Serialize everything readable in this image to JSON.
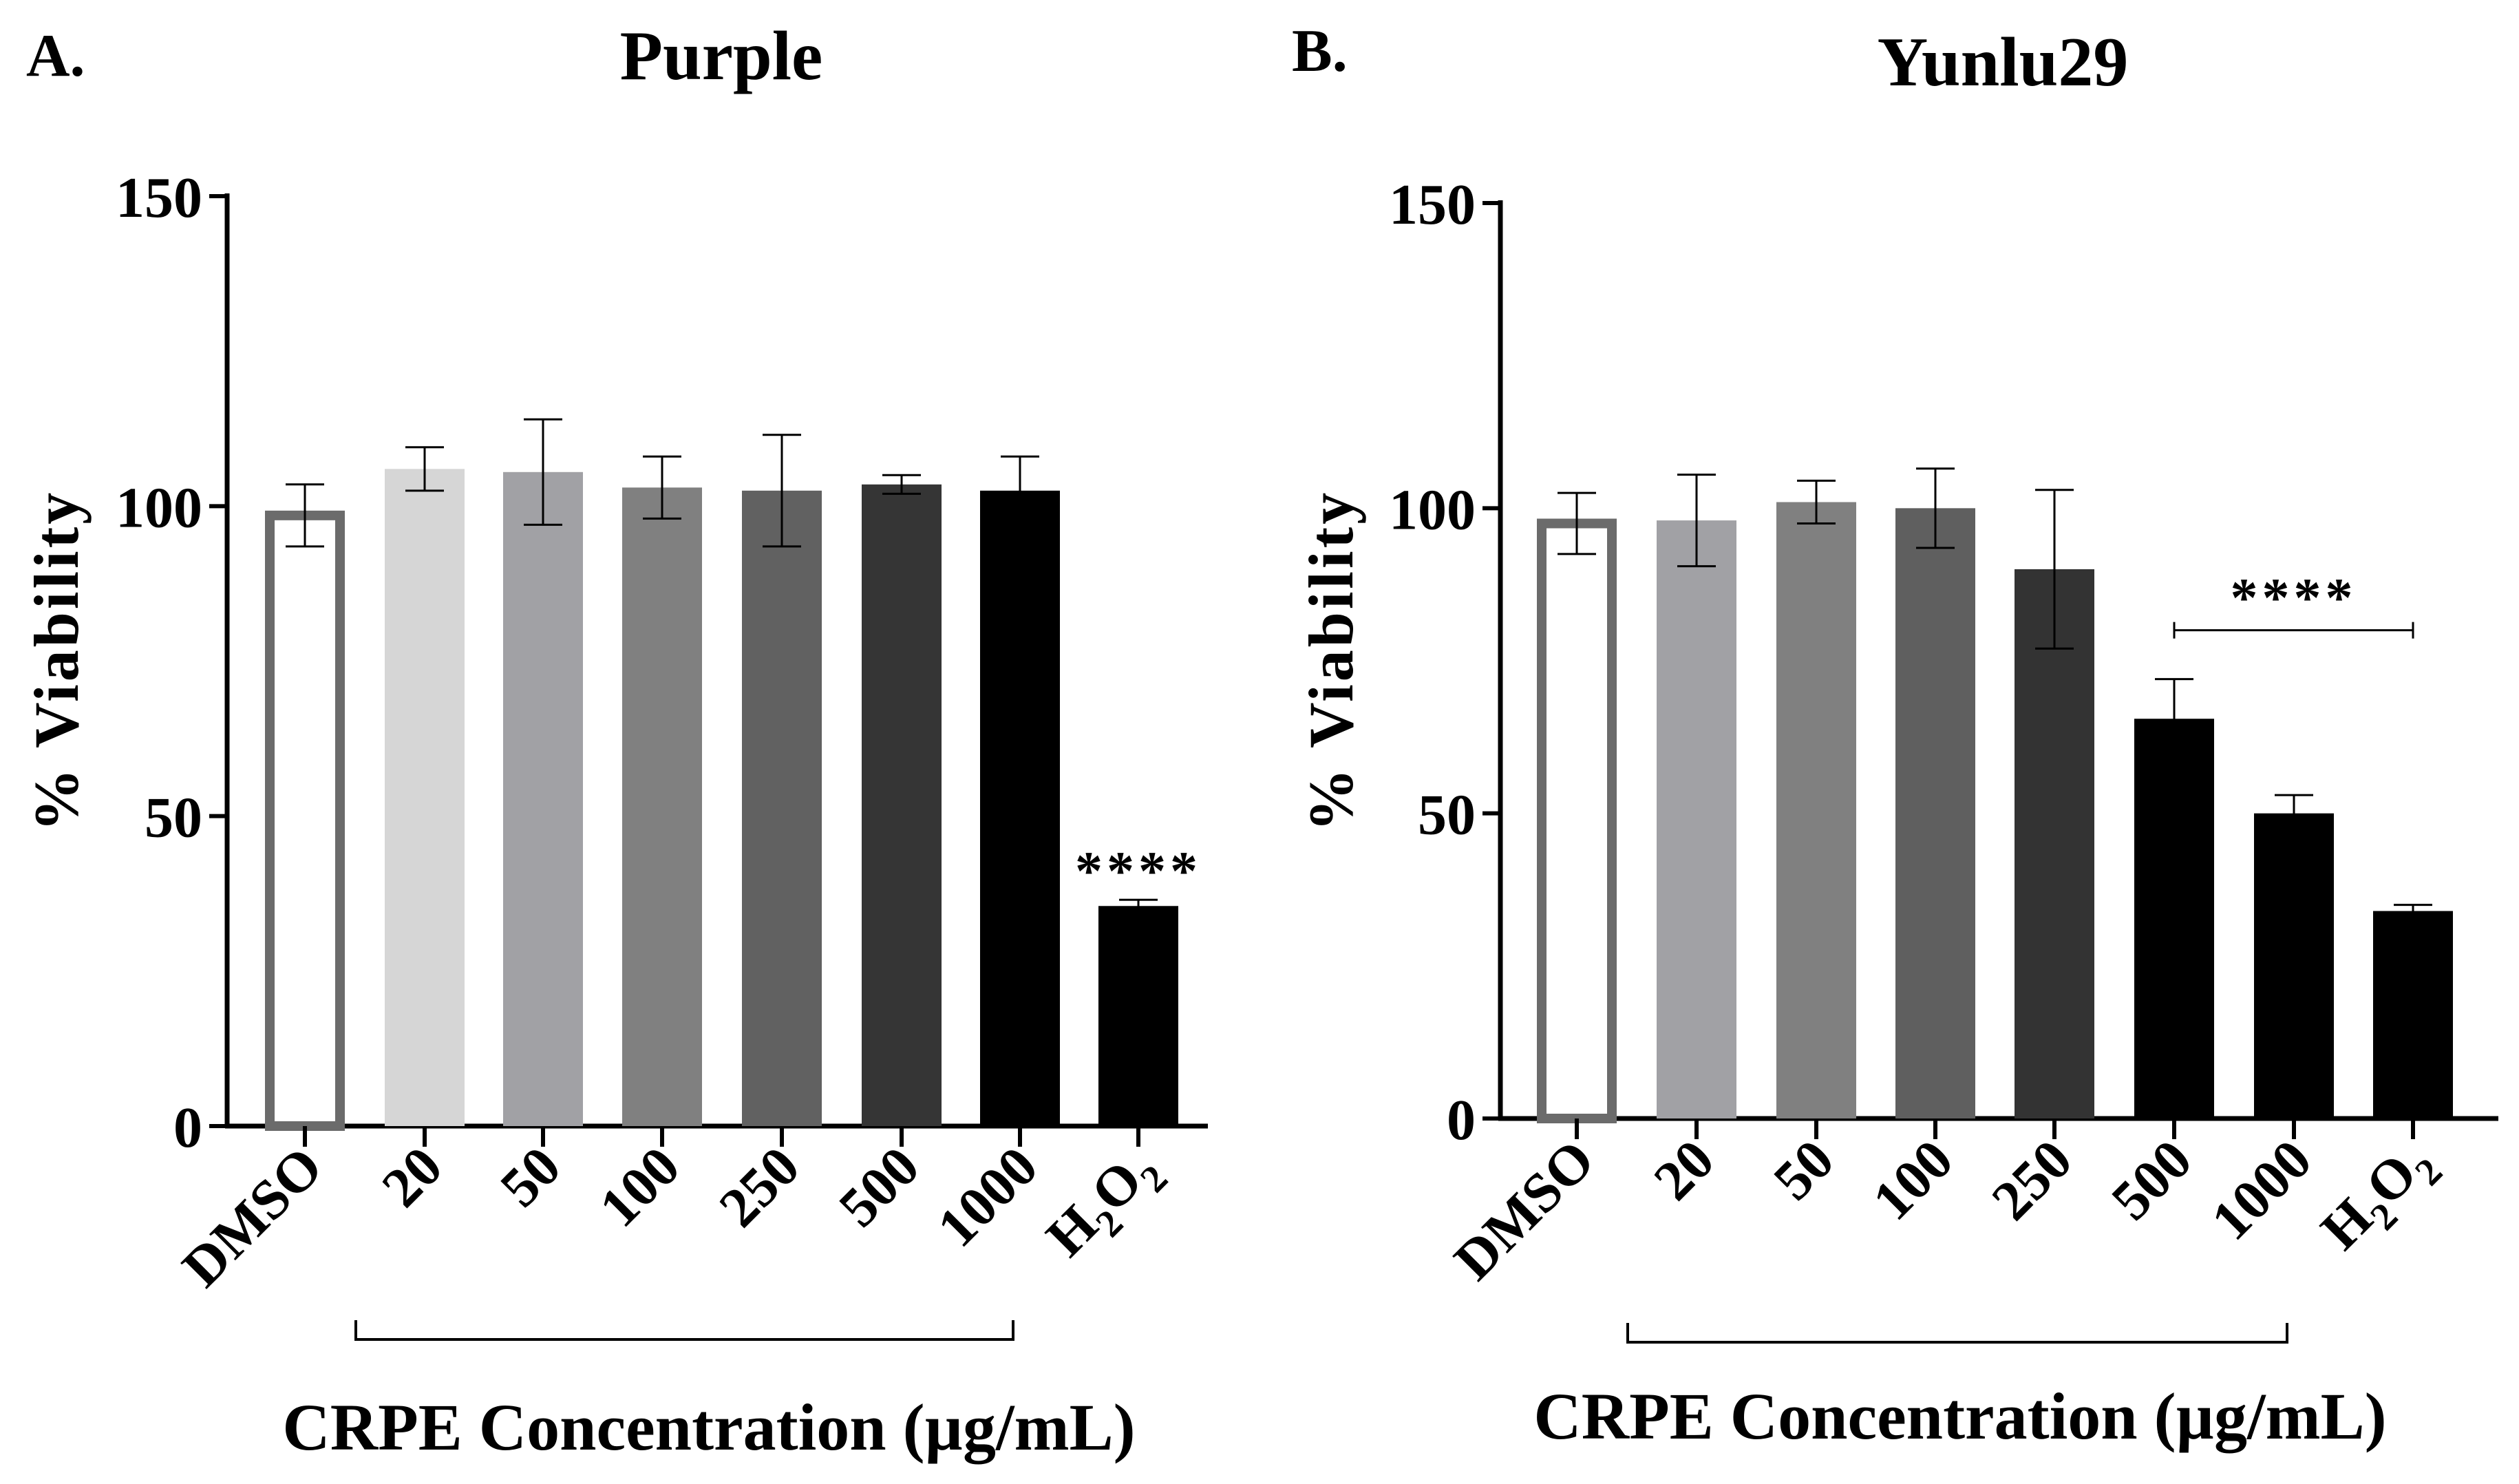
{
  "chart_data": [
    {
      "type": "bar",
      "panel_label": "A.",
      "title": "Purple",
      "ylabel": "% Viability",
      "xlabel": "CRPE Concentration (µg/mL)",
      "ylim": [
        0,
        150
      ],
      "yticks": [
        "0",
        "50",
        "100",
        "150"
      ],
      "categories": [
        "DMSO",
        "20",
        "50",
        "100",
        "250",
        "500",
        "1000",
        "H2O2"
      ],
      "values": [
        98.5,
        106,
        105.5,
        103,
        102.5,
        103.5,
        102.5,
        35.5
      ],
      "errors": [
        5,
        3.5,
        8.5,
        5,
        9,
        1.5,
        5.5,
        1
      ],
      "colors": [
        "#ffffff",
        "#d6d6d6",
        "#a1a1a5",
        "#808080",
        "#616161",
        "#353535",
        "#000000",
        "#000000"
      ],
      "outlined": [
        true,
        false,
        false,
        false,
        false,
        false,
        false,
        false
      ],
      "bracket_span": [
        "20",
        "1000"
      ],
      "significance": [
        {
          "label": "****",
          "category": "H2O2"
        }
      ]
    },
    {
      "type": "bar",
      "panel_label": "B.",
      "title": "Yunlu29",
      "ylabel": "% Viability",
      "xlabel": "CRPE Concentration (µg/mL)",
      "ylim": [
        0,
        150
      ],
      "yticks": [
        "0",
        "50",
        "100",
        "150"
      ],
      "categories": [
        "DMSO",
        "20",
        "50",
        "100",
        "250",
        "500",
        "1000",
        "H2O2"
      ],
      "values": [
        97.5,
        98,
        101,
        100,
        90,
        65.5,
        50,
        34
      ],
      "errors": [
        5,
        7.5,
        3.5,
        6.5,
        13,
        6.5,
        3,
        1
      ],
      "colors": [
        "#ffffff",
        "#a1a1a5",
        "#808080",
        "#5f5f5f",
        "#333333",
        "#000000",
        "#000000",
        "#000000"
      ],
      "outlined": [
        true,
        false,
        false,
        false,
        false,
        false,
        false,
        false
      ],
      "bracket_span": [
        "20",
        "1000"
      ],
      "significance": [
        {
          "label": "****",
          "from": "500",
          "to": "H2O2"
        }
      ]
    }
  ]
}
